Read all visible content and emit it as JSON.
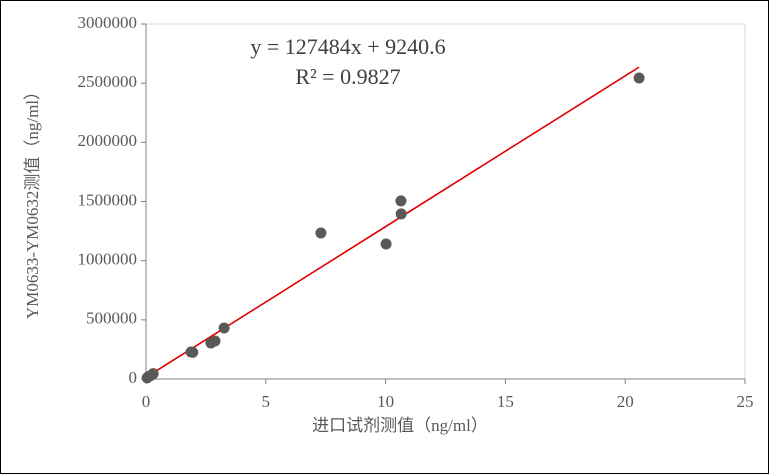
{
  "chart_data": {
    "type": "scatter",
    "x_label": "进口试剂测值（ng/ml）",
    "y_label": "YM0633-YM0632测值（ng/ml）",
    "annotations": [
      "y = 127484x + 9240.6",
      "R² = 0.9827"
    ],
    "series": [
      {
        "color": "#595959",
        "x": [
          0.05,
          0.1,
          0.2,
          0.3,
          1.88,
          1.95,
          2.71,
          2.88,
          3.26,
          7.3,
          10.02,
          10.64,
          10.65,
          20.58
        ],
        "values": [
          10000,
          20000,
          30000,
          45000,
          228000,
          225000,
          304000,
          321000,
          431000,
          1234000,
          1141000,
          1505000,
          1395000,
          2544000
        ]
      }
    ],
    "trendline_color": "#e00000",
    "xlim": [
      0,
      25
    ],
    "xticks": [
      0,
      5,
      10,
      15,
      20,
      25
    ],
    "ylim": [
      0,
      3000000
    ],
    "yticks": [
      0,
      500000,
      1000000,
      1500000,
      2000000,
      2500000,
      3000000
    ]
  }
}
